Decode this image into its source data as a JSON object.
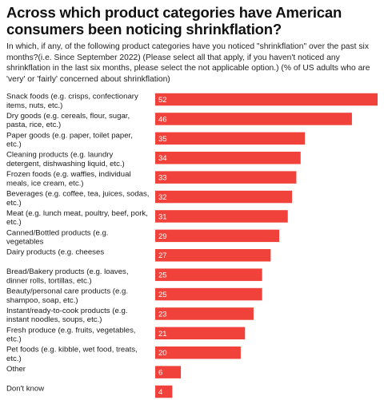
{
  "title": "Across which product categories have American consumers been noticing shrinkflation?",
  "subtitle": "In which, if any, of the following product categories have you noticed \"shrinkflation\" over the past six months?(i.e. Since September 2022) (Please select all that apply, if you haven't noticed any shrinkflation in the last six months, please select the not applicable option.) (% of US adults who are 'very' or 'fairly' concerned about shrinkflation)",
  "colors": {
    "bar": "#f0423a",
    "value_text": "#ffffff"
  },
  "chart_data": {
    "type": "bar",
    "orientation": "horizontal",
    "title": "Across which product categories have American consumers been noticing shrinkflation?",
    "categories": [
      [
        "Snack foods (e.g. crisps, confectionary",
        "items, nuts, etc.)"
      ],
      [
        "Dry goods (e.g. cereals, flour, sugar,",
        "pasta, rice, etc.)"
      ],
      [
        "Paper goods (e.g. paper, toilet paper,",
        "etc.)"
      ],
      [
        "Cleaning products (e.g. laundry",
        "detergent, dishwashing liquid, etc.)"
      ],
      [
        "Frozen foods (e.g. waffles, individual",
        "meals, ice cream, etc.)"
      ],
      [
        "Beverages (e.g. coffee, tea, juices, sodas,",
        "etc.)"
      ],
      [
        "Meat (e.g. lunch meat, poultry, beef, pork,",
        "etc.)"
      ],
      [
        "Canned/Bottled products (e.g.",
        "vegetables"
      ],
      [
        "Dairy products (e.g. cheeses"
      ],
      [
        "Bread/Bakery products (e.g. loaves,",
        "dinner rolls, tortillas, etc.)"
      ],
      [
        "Beauty/personal care products (e.g.",
        "shampoo, soap, etc.)"
      ],
      [
        "Instant/ready-to-cook products (e.g.",
        "instant noodles, soups, etc.)"
      ],
      [
        "Fresh produce (e.g. fruits, vegetables,",
        "etc.)"
      ],
      [
        "Pet foods (e.g. kibble, wet food, treats,",
        "etc.)"
      ],
      [
        "Other"
      ],
      [
        "Don't know"
      ]
    ],
    "values": [
      52,
      46,
      35,
      34,
      33,
      32,
      31,
      29,
      27,
      25,
      25,
      23,
      21,
      20,
      6,
      4
    ],
    "xlim": [
      0,
      52
    ],
    "grid": false,
    "legend": "none",
    "data_labels": "inside-start"
  }
}
